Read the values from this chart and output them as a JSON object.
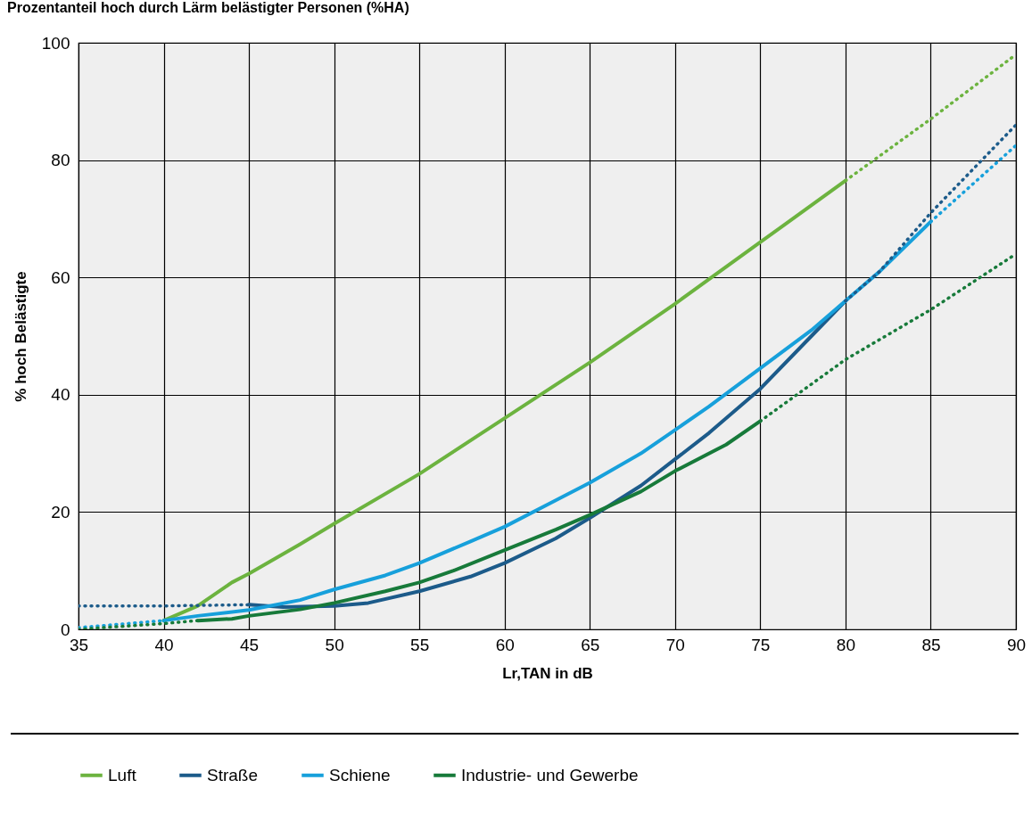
{
  "chart_data": {
    "type": "line",
    "title": "Prozentanteil hoch durch Lärm belästigter Personen (%HA)",
    "xlabel": "Lr,TAN in dB",
    "ylabel": "% hoch Belästigte",
    "xlim": [
      35,
      90
    ],
    "xticks": [
      35,
      40,
      45,
      50,
      55,
      60,
      65,
      70,
      75,
      80,
      85,
      90
    ],
    "ylim": [
      0,
      100
    ],
    "yticks": [
      0,
      20,
      40,
      60,
      80,
      100
    ],
    "grid": true,
    "legend": "bottom",
    "series": [
      {
        "name": "Luft",
        "color": "#6cb33f",
        "line_style": "solid",
        "x": [
          40,
          42,
          44,
          45,
          48,
          50,
          55,
          60,
          65,
          70,
          75,
          80
        ],
        "values": [
          1.5,
          4,
          8,
          9.5,
          14.5,
          18,
          26.5,
          36,
          45.5,
          55.5,
          66,
          76.5
        ]
      },
      {
        "name": "Straße",
        "color": "#1c5b8a",
        "line_style": "solid",
        "x": [
          45,
          47,
          50,
          52,
          55,
          58,
          60,
          63,
          65,
          68,
          70,
          72,
          75,
          78,
          80
        ],
        "values": [
          4.2,
          3.8,
          4,
          4.5,
          6.5,
          9,
          11.3,
          15.5,
          19,
          24.5,
          29,
          33.5,
          41,
          50,
          56
        ]
      },
      {
        "name": "Schiene",
        "color": "#17a0db",
        "line_style": "solid",
        "x": [
          40,
          42,
          45,
          48,
          50,
          53,
          55,
          58,
          60,
          63,
          65,
          68,
          70,
          72,
          75,
          78,
          80,
          82,
          85
        ],
        "values": [
          1.5,
          2.3,
          3.3,
          5,
          6.8,
          9.2,
          11.3,
          15,
          17.5,
          22,
          25,
          30,
          34,
          38,
          44.5,
          51,
          56,
          61,
          69.5
        ]
      },
      {
        "name": "Industrie- und Gewerbe",
        "color": "#177a3a",
        "line_style": "solid",
        "x": [
          42,
          44,
          45,
          48,
          50,
          53,
          55,
          57,
          60,
          63,
          65,
          68,
          70,
          73,
          75
        ],
        "values": [
          1.5,
          1.8,
          2.3,
          3.4,
          4.5,
          6.5,
          8,
          10,
          13.5,
          17,
          19.5,
          23.5,
          27,
          31.5,
          35.5
        ]
      },
      {
        "color": "#6cb33f",
        "line_style": "dotted",
        "x": [
          80,
          85,
          90
        ],
        "values": [
          76.5,
          87,
          98
        ]
      },
      {
        "color": "#1c5b8a",
        "line_style": "dotted",
        "x": [
          35,
          40,
          45
        ],
        "values": [
          4,
          4,
          4.2
        ]
      },
      {
        "color": "#1c5b8a",
        "line_style": "dotted",
        "x": [
          80,
          82,
          85,
          88,
          90
        ],
        "values": [
          56,
          61,
          71,
          80,
          86
        ]
      },
      {
        "color": "#17a0db",
        "line_style": "dotted",
        "x": [
          35,
          40
        ],
        "values": [
          0.3,
          1.5
        ]
      },
      {
        "color": "#17a0db",
        "line_style": "dotted",
        "x": [
          85,
          90
        ],
        "values": [
          69.5,
          82.5
        ]
      },
      {
        "color": "#177a3a",
        "line_style": "dotted",
        "x": [
          35,
          40,
          42
        ],
        "values": [
          0,
          1,
          1.5
        ]
      },
      {
        "color": "#177a3a",
        "line_style": "dotted",
        "x": [
          75,
          80,
          85,
          90
        ],
        "values": [
          35.5,
          46,
          54.5,
          64
        ]
      }
    ]
  }
}
